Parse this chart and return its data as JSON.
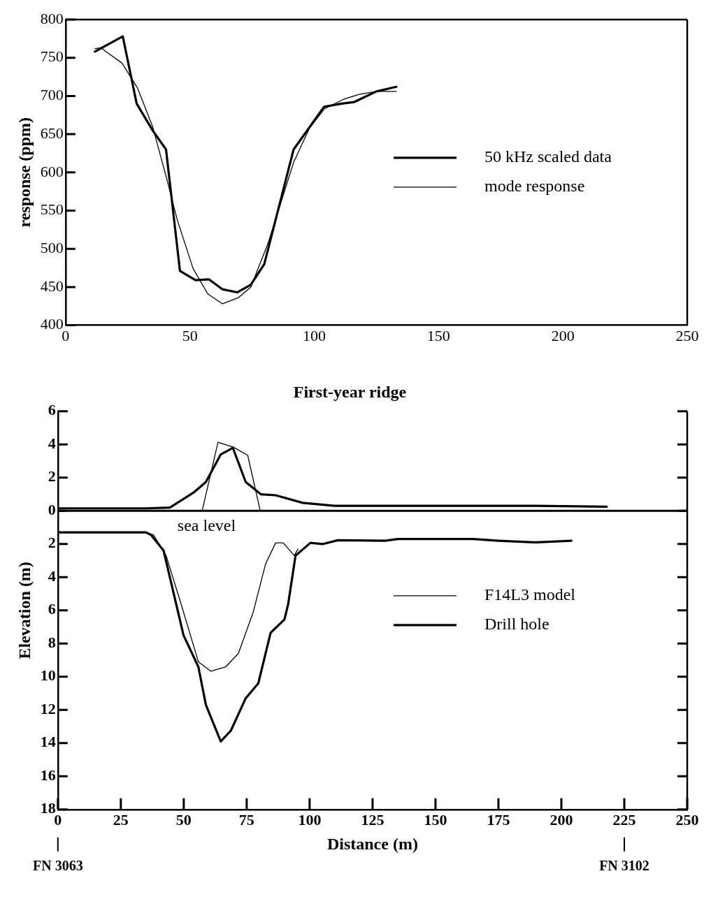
{
  "chart_data": [
    {
      "type": "line",
      "ylabel": "response (ppm)",
      "xlim": [
        0,
        250
      ],
      "ylim": [
        400,
        800
      ],
      "xticks": [
        0,
        50,
        100,
        150,
        200,
        250
      ],
      "yticks": [
        400,
        450,
        500,
        550,
        600,
        650,
        700,
        750,
        800
      ],
      "legend": "right",
      "series": [
        {
          "name": "50 kHz scaled data",
          "color": "#000000",
          "x": [
            11.8,
            16.8,
            23,
            28.6,
            35,
            40.4,
            46,
            52.3,
            57.7,
            63.1,
            69,
            74.5,
            79.9,
            91.7,
            104,
            111,
            116,
            125,
            133
          ],
          "values": [
            758,
            767,
            778,
            690,
            655,
            630,
            471,
            459,
            460,
            447,
            443,
            453,
            480,
            630,
            686,
            690,
            692,
            706,
            712
          ]
        },
        {
          "name": "mode response",
          "color": "#000000",
          "x": [
            11.8,
            14.3,
            16.3,
            22.7,
            29,
            35,
            40.9,
            44.9,
            51.3,
            57.2,
            63.1,
            69.5,
            74.5,
            81.4,
            91.7,
            98.1,
            104,
            112,
            118,
            125,
            133
          ],
          "values": [
            762,
            763,
            758,
            743,
            710,
            660,
            589,
            538,
            474,
            441,
            428,
            436,
            450,
            507,
            613,
            658,
            683,
            696,
            702,
            706,
            706
          ]
        }
      ]
    },
    {
      "type": "line",
      "title": "First-year ridge",
      "xlabel": "Distance (m)",
      "ylabel": "Elevation (m)",
      "xlim": [
        0,
        250
      ],
      "ylim": [
        -18,
        6
      ],
      "xticks": [
        0,
        25,
        50,
        75,
        100,
        125,
        150,
        175,
        200,
        225,
        250
      ],
      "yticks": [
        6,
        4,
        2,
        0,
        {
          "value": -2,
          "label": "2"
        },
        {
          "value": -4,
          "label": "4"
        },
        {
          "value": -6,
          "label": "6"
        },
        {
          "value": -8,
          "label": "8"
        },
        {
          "value": -10,
          "label": "10"
        },
        {
          "value": -12,
          "label": "12"
        },
        {
          "value": -14,
          "label": "14"
        },
        {
          "value": -16,
          "label": "16"
        },
        {
          "value": -18,
          "label": "18"
        }
      ],
      "legend": "right",
      "ref_lines": [
        {
          "axis": "y",
          "value": 0,
          "label": "sea level"
        }
      ],
      "annotations": [
        "FN 3063",
        "FN 3102"
      ],
      "series": [
        {
          "name": "F14L3 model",
          "color": "#000000",
          "x": [
            0,
            57.3,
            63.6,
            69.7,
            75.4,
            80.4,
            250
          ],
          "values": [
            0,
            0,
            4.13,
            3.84,
            3.35,
            0,
            0
          ]
        },
        {
          "name": "Drill hole",
          "color": "#000000",
          "x": [
            0,
            35,
            44.5,
            53.9,
            58.8,
            64.7,
            69.5,
            74.6,
            80.6,
            86.5,
            97.3,
            110,
            150,
            190,
            218
          ],
          "values": [
            0.15,
            0.15,
            0.2,
            1.1,
            1.74,
            3.4,
            3.8,
            1.74,
            1.0,
            0.94,
            0.48,
            0.3,
            0.3,
            0.3,
            0.25
          ]
        },
        {
          "color": "#000000",
          "x": [
            0,
            34.1,
            38,
            43,
            48.9,
            55.8,
            60.8,
            66.7,
            71.7,
            77.6,
            82.5,
            86.5,
            89.5,
            93.9,
            95.4
          ],
          "values": [
            -1.3,
            -1.3,
            -1.45,
            -2.7,
            -5.6,
            -9.1,
            -9.67,
            -9.4,
            -8.6,
            -6.1,
            -3.2,
            -1.93,
            -1.93,
            -2.7,
            -2.3
          ]
        },
        {
          "color": "#000000",
          "x": [
            0,
            35,
            37,
            42,
            49.9,
            55.8,
            58.8,
            64.7,
            68.7,
            74.6,
            79.6,
            84.5,
            90,
            91.5,
            94.4,
            100.3,
            105.3,
            111.2,
            130,
            135,
            165,
            175,
            190,
            204
          ],
          "values": [
            -1.3,
            -1.3,
            -1.45,
            -2.4,
            -7.5,
            -9.4,
            -11.7,
            -13.9,
            -13.25,
            -11.3,
            -10.4,
            -7.35,
            -6.55,
            -5.6,
            -2.7,
            -1.93,
            -2.0,
            -1.77,
            -1.8,
            -1.7,
            -1.7,
            -1.8,
            -1.9,
            -1.8
          ]
        }
      ]
    }
  ]
}
